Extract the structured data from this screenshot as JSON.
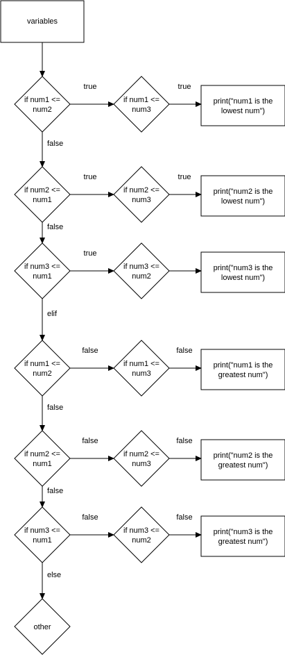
{
  "start": {
    "label": "variables"
  },
  "rows": [
    {
      "d1": [
        "if num1 <=",
        "num2"
      ],
      "e1": "true",
      "d2": [
        "if num1 <=",
        "num3"
      ],
      "e2": "true",
      "box": [
        "print(\"num1 is the",
        "lowest num\")"
      ],
      "down": "false"
    },
    {
      "d1": [
        "if num2 <=",
        "num1"
      ],
      "e1": "true",
      "d2": [
        "if num2 <=",
        "num3"
      ],
      "e2": "true",
      "box": [
        "print(\"num2 is the",
        "lowest num\")"
      ],
      "down": "false"
    },
    {
      "d1": [
        "if num3 <=",
        "num1"
      ],
      "e1": "true",
      "d2": [
        "if num3 <=",
        "num2"
      ],
      "e2": "",
      "box": [
        "print(\"num3 is the",
        "lowest num\")"
      ],
      "down": "elif"
    },
    {
      "d1": [
        "if num1 <=",
        "num2"
      ],
      "e1": "false",
      "d2": [
        "if num1 <=",
        "num3"
      ],
      "e2": "false",
      "box": [
        "print(\"num1 is the",
        "greatest num\")"
      ],
      "down": "false"
    },
    {
      "d1": [
        "if num2 <=",
        "num1"
      ],
      "e1": "false",
      "d2": [
        "if num2 <=",
        "num3"
      ],
      "e2": "false",
      "box": [
        "print(\"num2 is the",
        "greatest num\")"
      ],
      "down": "false"
    },
    {
      "d1": [
        "if num3 <=",
        "num1"
      ],
      "e1": "false",
      "d2": [
        "if num3 <=",
        "num2"
      ],
      "e2": "false",
      "box": [
        "print(\"num3 is the",
        "greatest num\")"
      ],
      "down": "else"
    }
  ],
  "end": {
    "label": "other"
  }
}
